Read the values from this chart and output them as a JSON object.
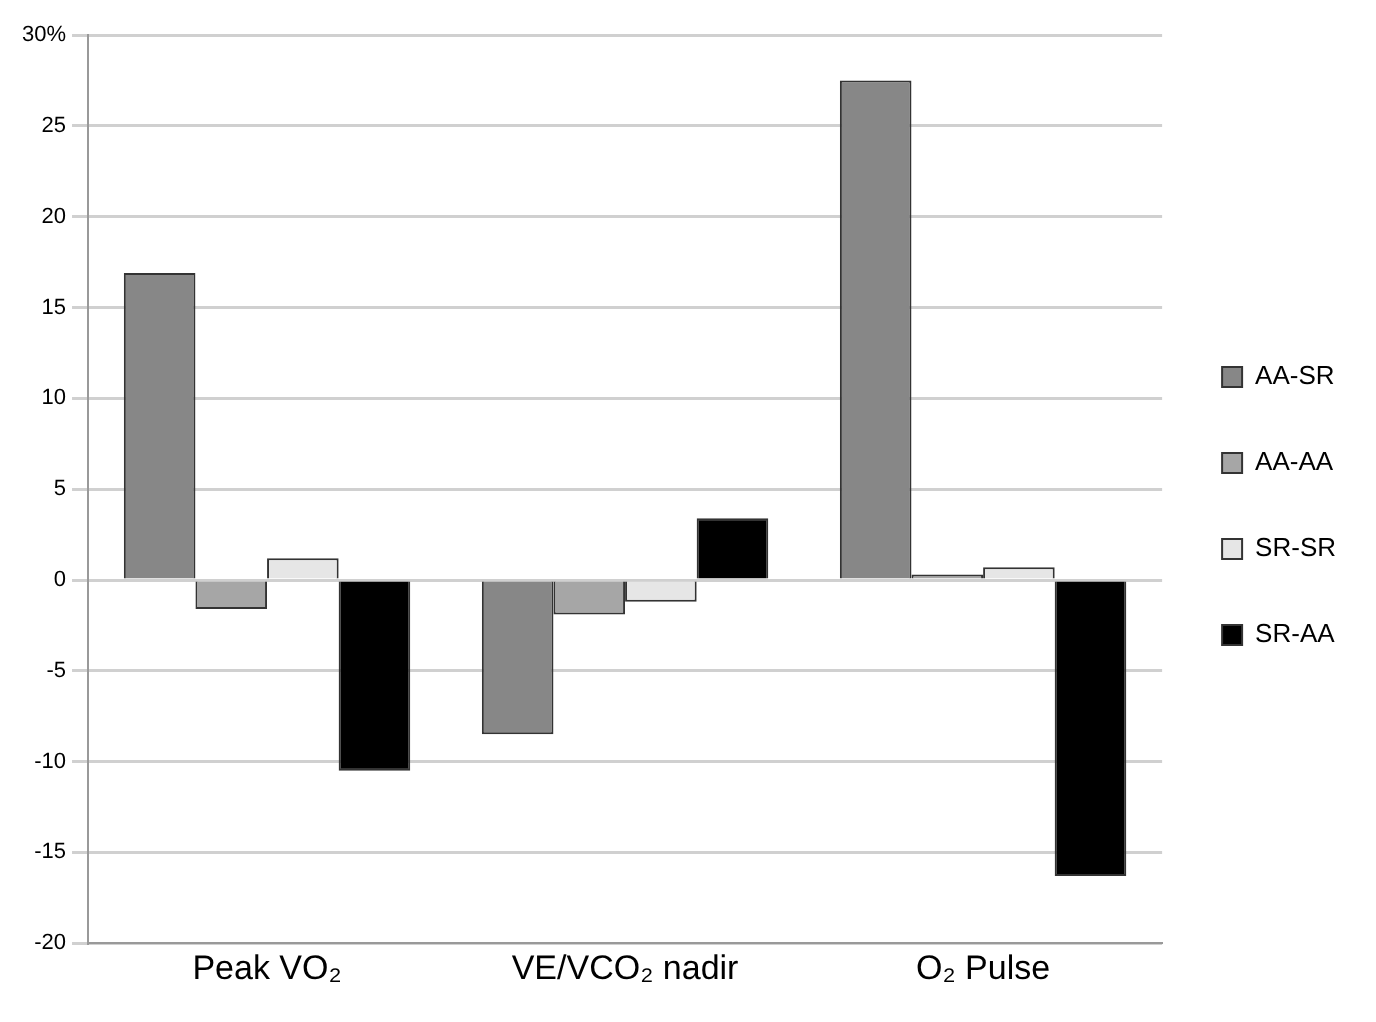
{
  "chart_data": {
    "type": "bar",
    "categories": [
      "Peak VO₂",
      "VE/VCO₂ nadir",
      "O₂ Pulse"
    ],
    "series": [
      {
        "name": "AA-SR",
        "color": "#878787",
        "values": [
          16.9,
          -8.5,
          27.5
        ]
      },
      {
        "name": "AA-AA",
        "color": "#a6a6a6",
        "values": [
          -1.6,
          -1.9,
          0.3
        ]
      },
      {
        "name": "SR-SR",
        "color": "#e6e6e6",
        "values": [
          1.2,
          -1.2,
          0.7
        ]
      },
      {
        "name": "SR-AA",
        "color": "#000000",
        "values": [
          -10.5,
          3.4,
          -16.3
        ]
      }
    ],
    "ylim": [
      -20,
      30
    ],
    "yticks": [
      -20,
      -15,
      -10,
      -5,
      0,
      5,
      10,
      15,
      20,
      25,
      {
        "value": 30,
        "label": "30%"
      }
    ],
    "grid": "y",
    "legend": "right"
  }
}
